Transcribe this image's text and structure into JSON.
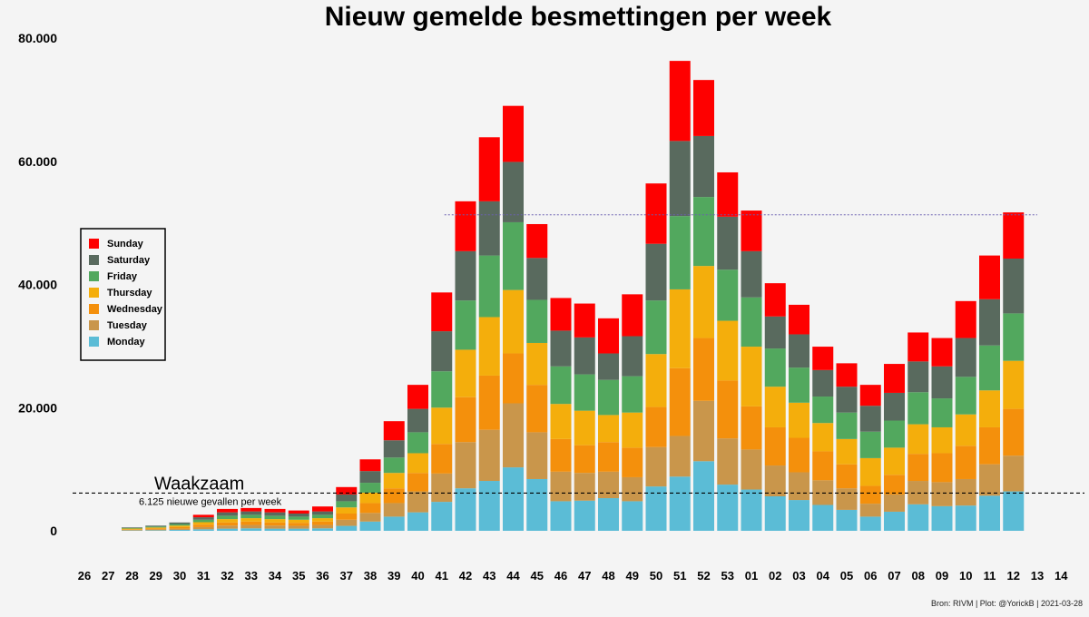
{
  "chart_data": {
    "type": "bar",
    "stacked": true,
    "title": "Nieuw gemelde besmettingen per week",
    "xlabel": "",
    "ylabel": "",
    "ylim": [
      0,
      80000
    ],
    "yticks": [
      0,
      20000,
      40000,
      60000,
      80000
    ],
    "ytick_labels": [
      "0",
      "20.000",
      "40.000",
      "60.000",
      "80.000"
    ],
    "grid": false,
    "legend_position": "left",
    "categories": [
      "26",
      "27",
      "28",
      "29",
      "30",
      "31",
      "32",
      "33",
      "34",
      "35",
      "36",
      "37",
      "38",
      "39",
      "40",
      "41",
      "42",
      "43",
      "44",
      "45",
      "46",
      "47",
      "48",
      "49",
      "50",
      "51",
      "52",
      "53",
      "01",
      "02",
      "03",
      "04",
      "05",
      "06",
      "07",
      "08",
      "09",
      "10",
      "11",
      "12",
      "13",
      "14"
    ],
    "series": [
      {
        "name": "Monday",
        "color": "#5bbcd6",
        "values": [
          0,
          0,
          60,
          90,
          150,
          250,
          350,
          400,
          350,
          350,
          400,
          800,
          1500,
          2300,
          3000,
          4700,
          6900,
          8100,
          10300,
          8400,
          4800,
          4900,
          5300,
          4800,
          7200,
          8800,
          11300,
          7500,
          6700,
          5600,
          5000,
          4200,
          3400,
          2300,
          3100,
          4300,
          4000,
          4100,
          5700,
          6400,
          0,
          0
        ]
      },
      {
        "name": "Tuesday",
        "color": "#c9964b",
        "values": [
          0,
          0,
          100,
          150,
          200,
          350,
          500,
          550,
          500,
          450,
          550,
          1000,
          1400,
          2200,
          3400,
          4600,
          7500,
          8300,
          10400,
          7600,
          4800,
          4500,
          4300,
          3900,
          6400,
          6600,
          9800,
          7500,
          6500,
          5000,
          4500,
          4000,
          3500,
          2100,
          2800,
          3800,
          3900,
          4300,
          5100,
          5800,
          0,
          0
        ]
      },
      {
        "name": "Wednesday",
        "color": "#f4900c",
        "values": [
          0,
          0,
          100,
          150,
          250,
          400,
          500,
          550,
          500,
          500,
          550,
          1000,
          1600,
          2400,
          3000,
          4800,
          7300,
          8800,
          8100,
          7700,
          5300,
          4500,
          4800,
          4800,
          6500,
          11000,
          10200,
          9400,
          7000,
          6200,
          5600,
          4700,
          3900,
          2900,
          3200,
          4400,
          4700,
          5400,
          6000,
          7600,
          0,
          0
        ]
      },
      {
        "name": "Thursday",
        "color": "#f4ae0c",
        "values": [
          0,
          0,
          100,
          150,
          250,
          400,
          550,
          550,
          550,
          500,
          550,
          1000,
          1700,
          2500,
          3200,
          5900,
          7700,
          9500,
          10300,
          6800,
          5700,
          5600,
          4400,
          5700,
          8600,
          12800,
          11700,
          9700,
          9700,
          6600,
          5700,
          4600,
          4100,
          4500,
          4400,
          4800,
          4200,
          5100,
          6000,
          7800,
          0,
          0
        ]
      },
      {
        "name": "Friday",
        "color": "#52a85e",
        "values": [
          0,
          0,
          100,
          150,
          250,
          400,
          550,
          550,
          550,
          500,
          550,
          1000,
          1600,
          2500,
          3400,
          5900,
          8000,
          10000,
          11000,
          7000,
          6100,
          5900,
          5700,
          5900,
          8700,
          11900,
          11200,
          8300,
          8000,
          6200,
          5700,
          4300,
          4300,
          4300,
          4400,
          5200,
          4700,
          6100,
          7300,
          7700,
          0,
          0
        ]
      },
      {
        "name": "Saturday",
        "color": "#596a5e",
        "values": [
          0,
          0,
          100,
          150,
          250,
          400,
          550,
          550,
          550,
          500,
          550,
          1100,
          1900,
          2800,
          3800,
          6500,
          8000,
          8800,
          9800,
          6800,
          5800,
          6000,
          4300,
          6500,
          9200,
          12200,
          9900,
          8600,
          7500,
          5200,
          5400,
          4300,
          4200,
          4200,
          4500,
          5000,
          5200,
          6300,
          7500,
          8900,
          0,
          0
        ]
      },
      {
        "name": "Sunday",
        "color": "#fe0000",
        "values": [
          0,
          0,
          0,
          0,
          0,
          400,
          550,
          550,
          550,
          500,
          800,
          1200,
          1900,
          3100,
          3900,
          6300,
          8100,
          10400,
          9100,
          5500,
          5300,
          5500,
          5700,
          6800,
          9800,
          13000,
          9100,
          7200,
          6600,
          5400,
          4800,
          3800,
          3800,
          3400,
          4700,
          4700,
          4600,
          6000,
          7100,
          7500,
          0,
          0
        ]
      }
    ],
    "reference_lines": [
      {
        "label": "Waakzaam",
        "sublabel": "6.125 nieuwe gevallen per week",
        "value": 6125,
        "style": "dashed",
        "color": "#000000"
      },
      {
        "value": 51300,
        "from_category": "42",
        "style": "dotted",
        "color": "#6a5fb0"
      }
    ],
    "legend_order": [
      "Sunday",
      "Saturday",
      "Friday",
      "Thursday",
      "Wednesday",
      "Tuesday",
      "Monday"
    ]
  },
  "source_text": "Bron: RIVM | Plot: @YorickB |  2021-03-28"
}
